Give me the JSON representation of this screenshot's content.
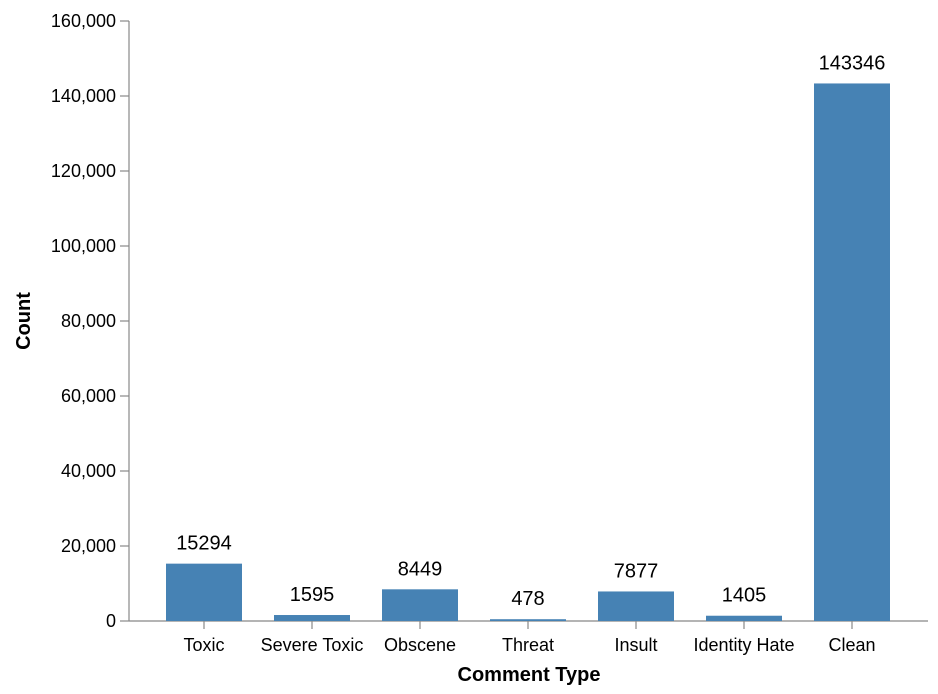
{
  "chart_data": {
    "type": "bar",
    "xlabel": "Comment Type",
    "ylabel": "Count",
    "categories": [
      "Toxic",
      "Severe Toxic",
      "Obscene",
      "Threat",
      "Insult",
      "Identity Hate",
      "Clean"
    ],
    "values": [
      15294,
      1595,
      8449,
      478,
      7877,
      1405,
      143346
    ],
    "data_labels": [
      "15294",
      "1595",
      "8449",
      "478",
      "7877",
      "1405",
      "143346"
    ],
    "ylim": [
      0,
      160000
    ],
    "yticks": [
      0,
      20000,
      40000,
      60000,
      80000,
      100000,
      120000,
      140000,
      160000
    ],
    "ytick_labels": [
      "0",
      "20,000",
      "40,000",
      "60,000",
      "80,000",
      "100,000",
      "120,000",
      "140,000",
      "160,000"
    ],
    "grid": false,
    "bar_color": "#4682b4",
    "axis_color": "#888888"
  }
}
